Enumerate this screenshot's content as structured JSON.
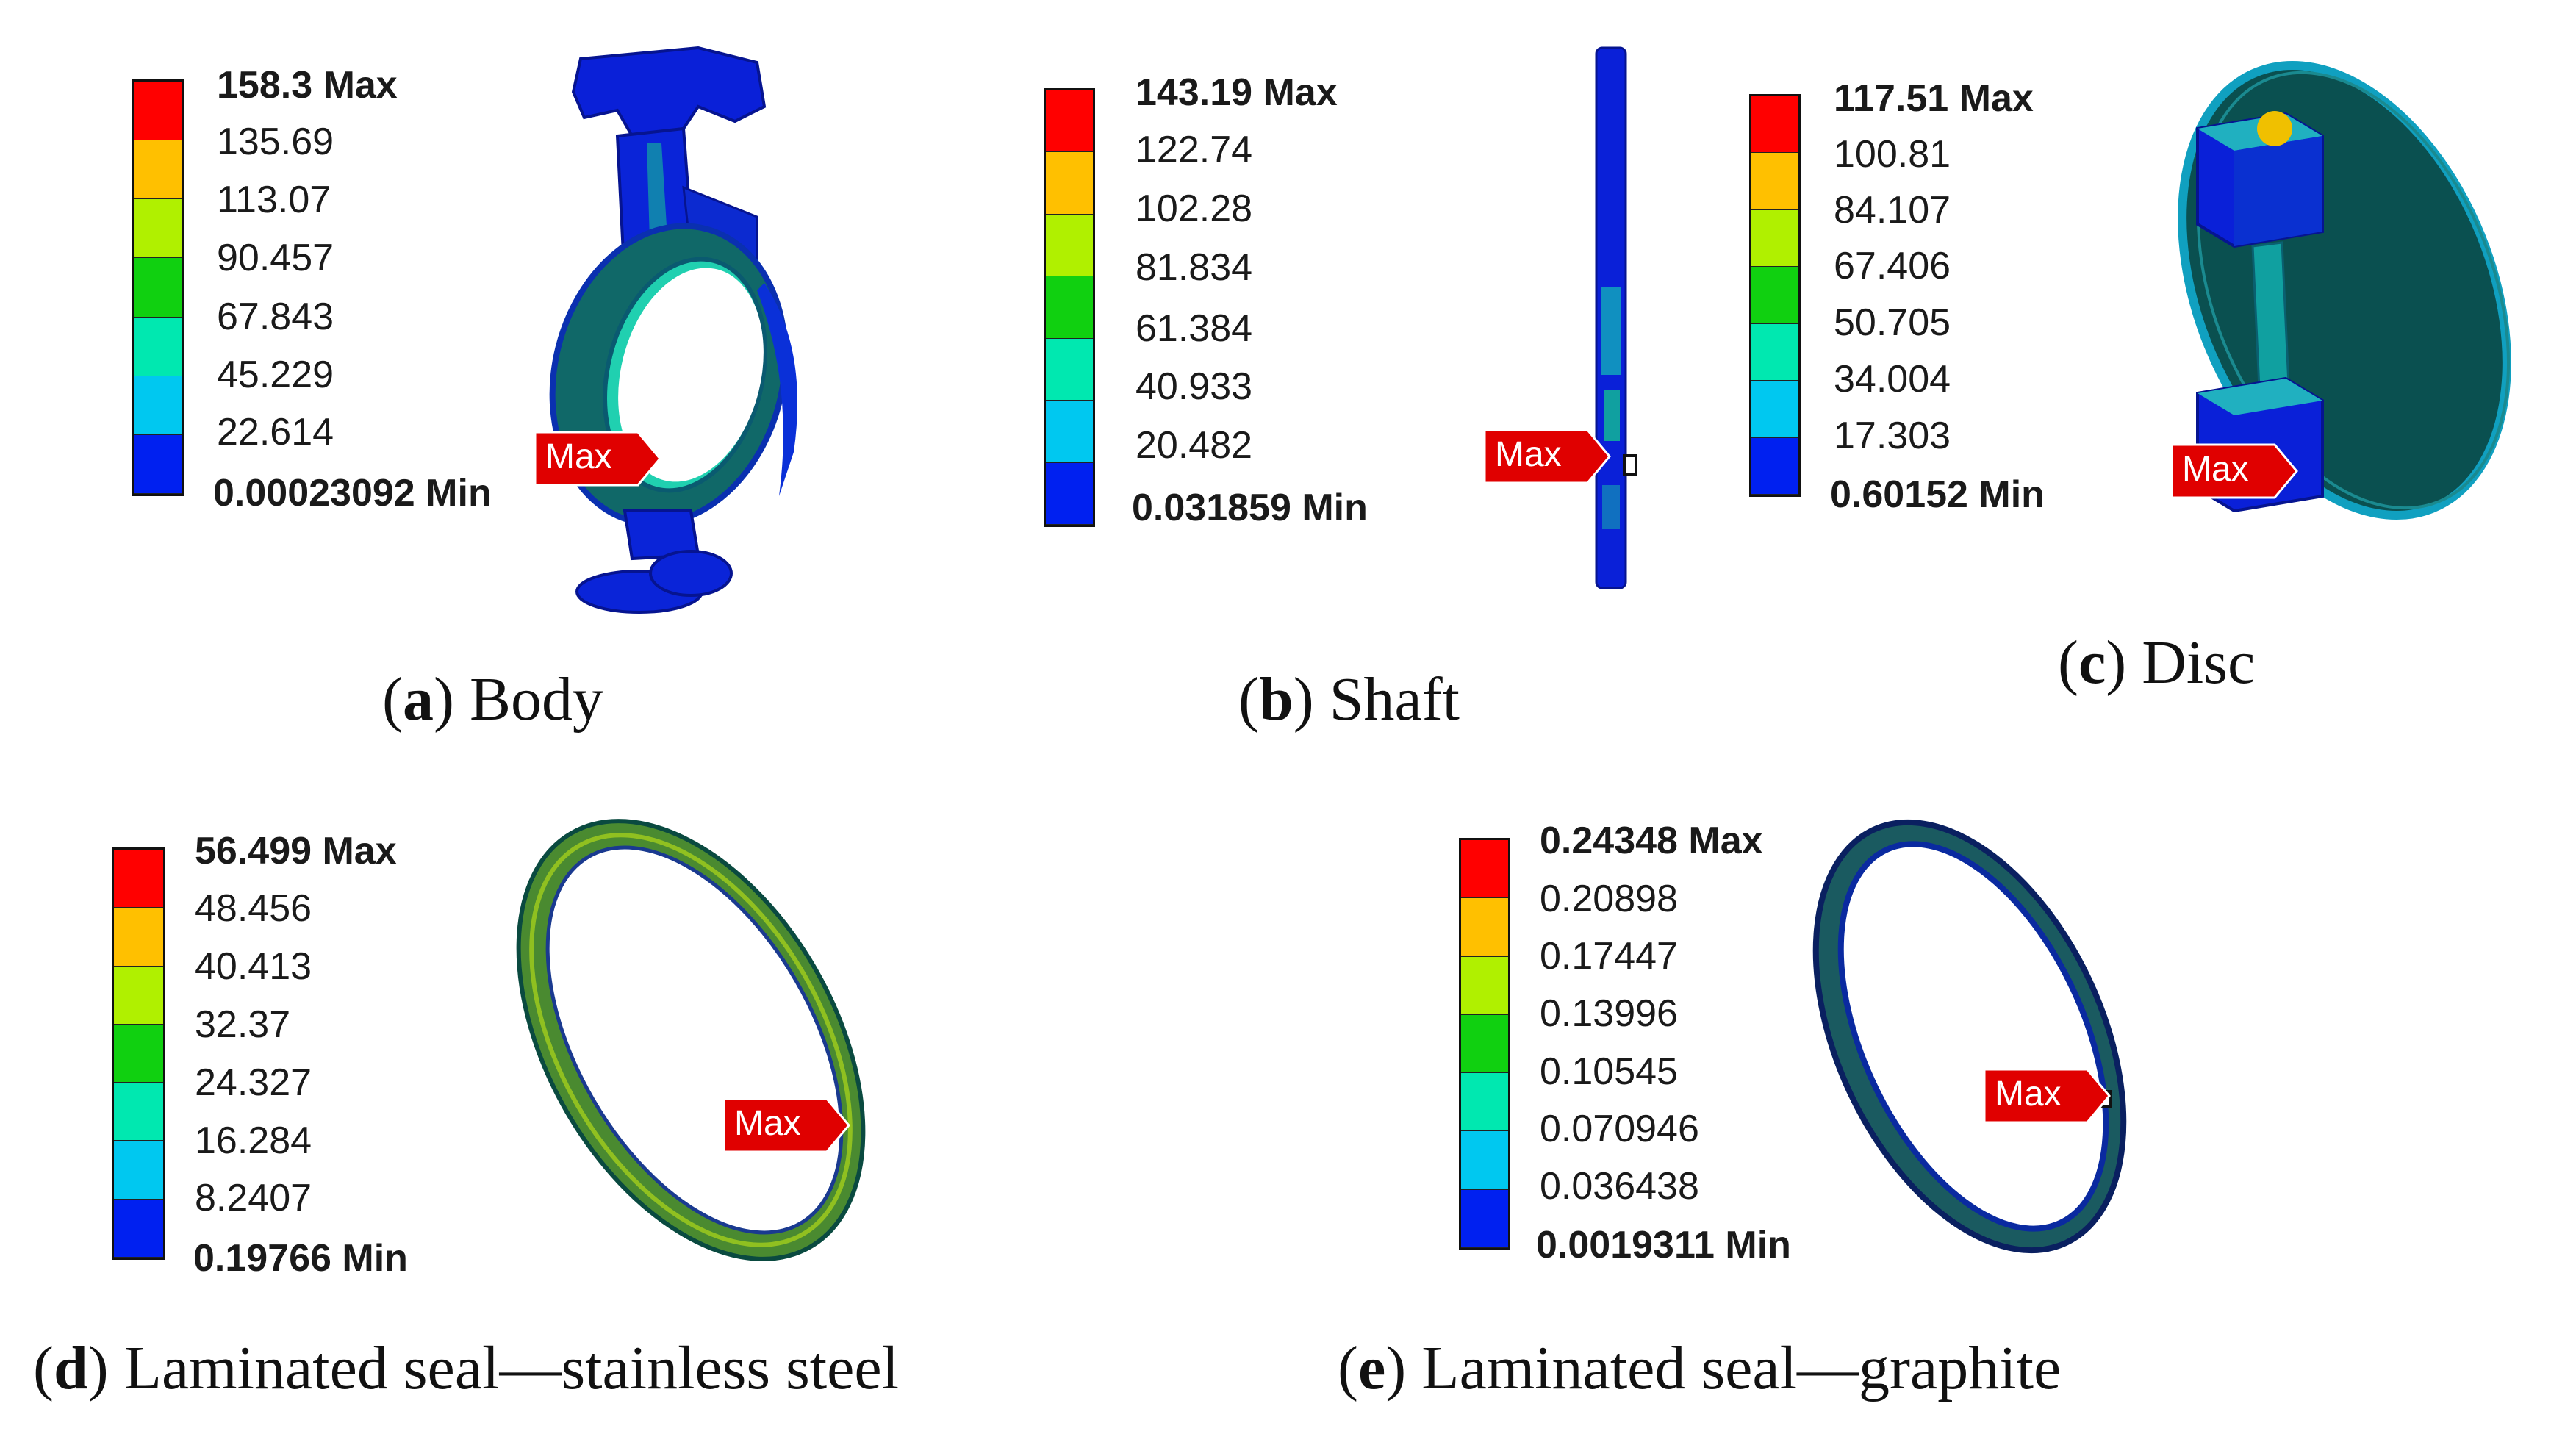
{
  "colors": {
    "scale": [
      "#FF0000",
      "#FFC000",
      "#B0F000",
      "#10D010",
      "#00E8B0",
      "#00C8F0",
      "#0020F0"
    ],
    "marker_fill": "#E00000",
    "model_blue": "#0A20D8",
    "model_teal": "#10A0A0",
    "model_dark": "#0A5050"
  },
  "marker_label": "Max",
  "panels": {
    "a": {
      "letter": "a",
      "caption": "Body",
      "legend": [
        "158.3 Max",
        "135.69",
        "113.07",
        "90.457",
        "67.843",
        "45.229",
        "22.614",
        "0.00023092 Min"
      ]
    },
    "b": {
      "letter": "b",
      "caption": "Shaft",
      "legend": [
        "143.19 Max",
        "122.74",
        "102.28",
        "81.834",
        "61.384",
        "40.933",
        "20.482",
        "0.031859 Min"
      ]
    },
    "c": {
      "letter": "c",
      "caption": "Disc",
      "legend": [
        "117.51 Max",
        "100.81",
        "84.107",
        "67.406",
        "50.705",
        "34.004",
        "17.303",
        "0.60152 Min"
      ]
    },
    "d": {
      "letter": "d",
      "caption": "Laminated seal—stainless steel",
      "legend": [
        "56.499 Max",
        "48.456",
        "40.413",
        "32.37",
        "24.327",
        "16.284",
        "8.2407",
        "0.19766 Min"
      ]
    },
    "e": {
      "letter": "e",
      "caption": "Laminated seal—graphite",
      "legend": [
        "0.24348 Max",
        "0.20898",
        "0.17447",
        "0.13996",
        "0.10545",
        "0.070946",
        "0.036438",
        "0.0019311 Min"
      ]
    }
  }
}
